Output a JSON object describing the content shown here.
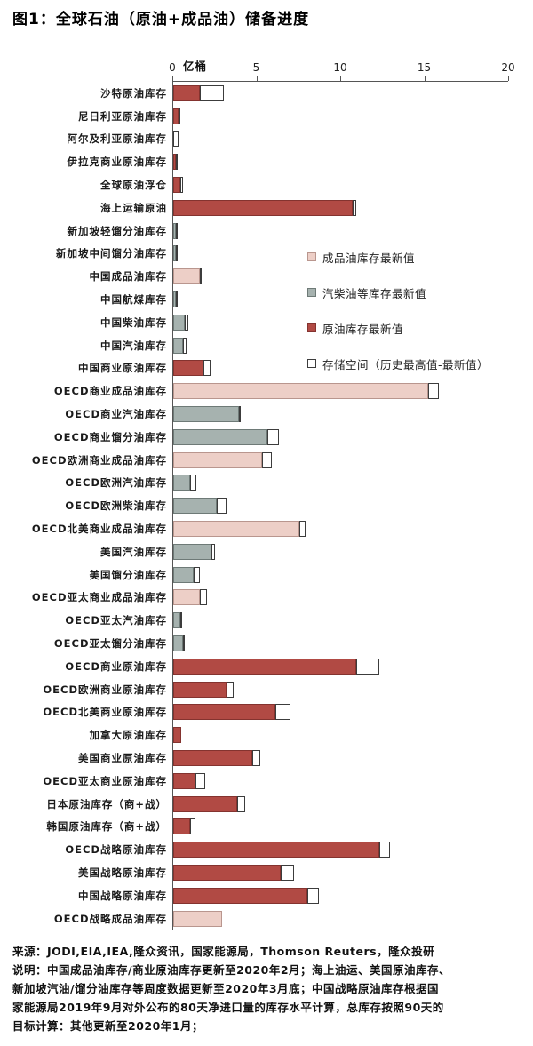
{
  "title": "图1：全球石油（原油+成品油）储备进度",
  "chart_data": {
    "type": "bar",
    "orientation": "horizontal",
    "title": "图1：全球石油（原油+成品油）储备进度",
    "xlabel": "亿桶",
    "xlim": [
      0,
      20
    ],
    "x_ticks": [
      0,
      5,
      10,
      15,
      20
    ],
    "grid": false,
    "legend_position": "inside-plot-right",
    "colors": {
      "product": {
        "fill": "#edcfc7",
        "border": "#b9968e"
      },
      "lightoil": {
        "fill": "#a6b2af",
        "border": "#6e7a77"
      },
      "crude": {
        "fill": "#b14a44",
        "border": "#84332f"
      },
      "space": {
        "fill": "#ffffff",
        "border": "#3c3c3c"
      }
    },
    "legend": [
      {
        "key": "product",
        "label": "成品油库存最新值"
      },
      {
        "key": "lightoil",
        "label": "汽柴油等库存最新值"
      },
      {
        "key": "crude",
        "label": "原油库存最新值"
      },
      {
        "key": "space",
        "label": "存储空间（历史最高值-最新值）"
      }
    ],
    "series_note": "value = 最新库存值; total = 历史最高值 (白色段 = total - value)",
    "rows": [
      {
        "label": "沙特原油库存",
        "type": "crude",
        "value": 1.6,
        "total": 3.0
      },
      {
        "label": "尼日利亚原油库存",
        "type": "crude",
        "value": 0.3,
        "total": 0.35
      },
      {
        "label": "阿尔及利亚原油库存",
        "type": "crude",
        "value": 0.0,
        "total": 0.3
      },
      {
        "label": "伊拉克商业原油库存",
        "type": "crude",
        "value": 0.15,
        "total": 0.2
      },
      {
        "label": "全球原油浮仓",
        "type": "crude",
        "value": 0.4,
        "total": 0.6
      },
      {
        "label": "海上运输原油",
        "type": "crude",
        "value": 10.7,
        "total": 10.9
      },
      {
        "label": "新加坡轻馏分油库存",
        "type": "lightoil",
        "value": 0.15,
        "total": 0.2
      },
      {
        "label": "新加坡中间馏分油库存",
        "type": "lightoil",
        "value": 0.15,
        "total": 0.2
      },
      {
        "label": "中国成品油库存",
        "type": "product",
        "value": 1.6,
        "total": 1.7
      },
      {
        "label": "中国航煤库存",
        "type": "lightoil",
        "value": 0.15,
        "total": 0.2
      },
      {
        "label": "中国柴油库存",
        "type": "lightoil",
        "value": 0.7,
        "total": 0.9
      },
      {
        "label": "中国汽油库存",
        "type": "lightoil",
        "value": 0.6,
        "total": 0.8
      },
      {
        "label": "中国商业原油库存",
        "type": "crude",
        "value": 1.8,
        "total": 2.2
      },
      {
        "label": "OECD商业成品油库存",
        "type": "product",
        "value": 15.2,
        "total": 15.8
      },
      {
        "label": "OECD商业汽油库存",
        "type": "lightoil",
        "value": 3.9,
        "total": 4.0
      },
      {
        "label": "OECD商业馏分油库存",
        "type": "lightoil",
        "value": 5.6,
        "total": 6.3
      },
      {
        "label": "OECD欧洲商业成品油库存",
        "type": "product",
        "value": 5.3,
        "total": 5.9
      },
      {
        "label": "OECD欧洲汽油库存",
        "type": "lightoil",
        "value": 1.0,
        "total": 1.4
      },
      {
        "label": "OECD欧洲柴油库存",
        "type": "lightoil",
        "value": 2.6,
        "total": 3.2
      },
      {
        "label": "OECD北美商业成品油库存",
        "type": "product",
        "value": 7.5,
        "total": 7.9
      },
      {
        "label": "美国汽油库存",
        "type": "lightoil",
        "value": 2.3,
        "total": 2.5
      },
      {
        "label": "美国馏分油库存",
        "type": "lightoil",
        "value": 1.2,
        "total": 1.6
      },
      {
        "label": "OECD亚太商业成品油库存",
        "type": "product",
        "value": 1.6,
        "total": 2.0
      },
      {
        "label": "OECD亚太汽油库存",
        "type": "lightoil",
        "value": 0.4,
        "total": 0.45
      },
      {
        "label": "OECD亚太馏分油库存",
        "type": "lightoil",
        "value": 0.6,
        "total": 0.7
      },
      {
        "label": "OECD商业原油库存",
        "type": "crude",
        "value": 10.9,
        "total": 12.3
      },
      {
        "label": "OECD欧洲商业原油库存",
        "type": "crude",
        "value": 3.2,
        "total": 3.6
      },
      {
        "label": "OECD北美商业原油库存",
        "type": "crude",
        "value": 6.1,
        "total": 7.0
      },
      {
        "label": "加拿大原油库存",
        "type": "crude",
        "value": 0.5,
        "total": 0.5
      },
      {
        "label": "美国商业原油库存",
        "type": "crude",
        "value": 4.7,
        "total": 5.2
      },
      {
        "label": "OECD亚太商业原油库存",
        "type": "crude",
        "value": 1.3,
        "total": 1.9
      },
      {
        "label": "日本原油库存（商+战）",
        "type": "crude",
        "value": 3.8,
        "total": 4.3
      },
      {
        "label": "韩国原油库存（商+战）",
        "type": "crude",
        "value": 1.0,
        "total": 1.3
      },
      {
        "label": "OECD战略原油库存",
        "type": "crude",
        "value": 12.3,
        "total": 12.9
      },
      {
        "label": "美国战略原油库存",
        "type": "crude",
        "value": 6.4,
        "total": 7.2
      },
      {
        "label": "中国战略原油库存",
        "type": "crude",
        "value": 8.0,
        "total": 8.7
      },
      {
        "label": "OECD战略成品油库存",
        "type": "product",
        "value": 2.9,
        "total": 2.9
      }
    ]
  },
  "footer": {
    "lines": [
      "来源：JODI,EIA,IEA,隆众资讯，国家能源局，Thomson Reuters，隆众投研",
      "说明：中国成品油库存/商业原油库存更新至2020年2月；海上油运、美国原油库存、",
      "新加坡汽油/馏分油库存等周度数据更新至2020年3月底；中国战略原油库存根据国",
      "家能源局2019年9月对外公布的80天净进口量的库存水平计算，总库存按照90天的",
      "目标计算：其他更新至2020年1月；"
    ]
  }
}
